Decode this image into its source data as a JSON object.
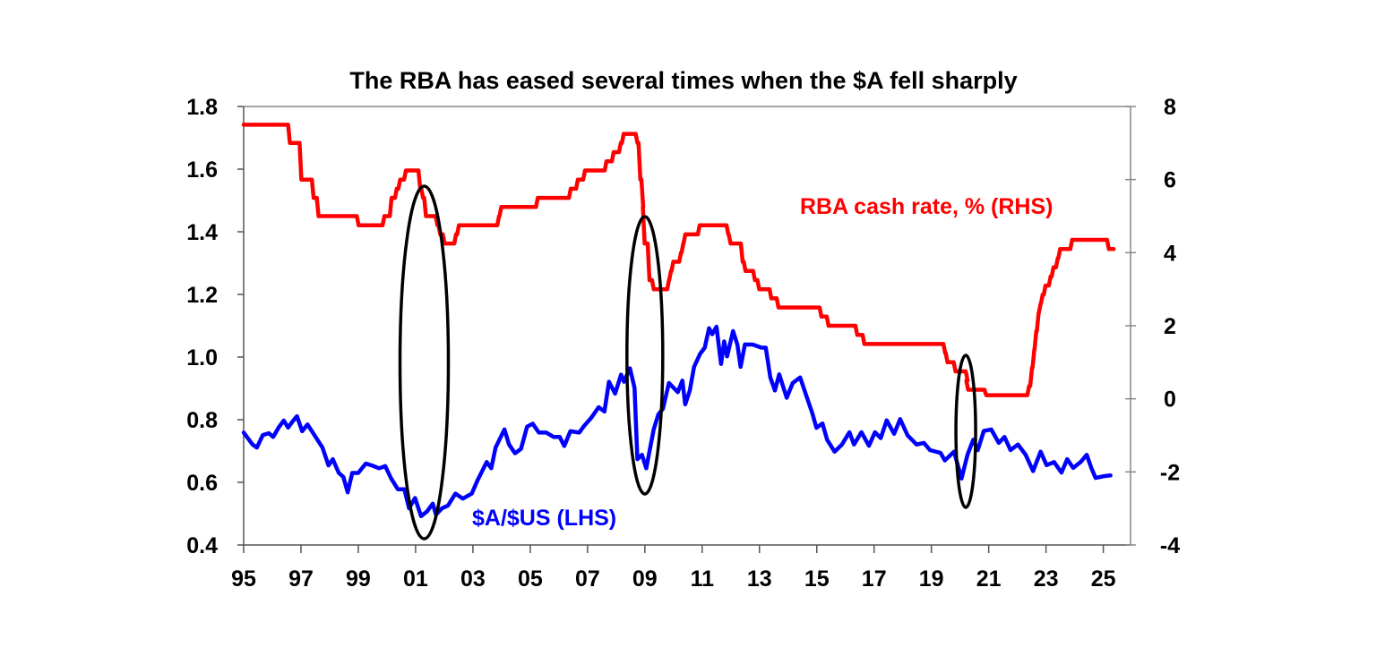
{
  "chart_data": {
    "type": "line",
    "title": "The RBA has eased several times when the $A fell sharply",
    "xlim": [
      1995,
      2025.95
    ],
    "x_ticks": [
      1995,
      1997,
      1999,
      2001,
      2003,
      2005,
      2007,
      2009,
      2011,
      2013,
      2015,
      2017,
      2019,
      2021,
      2023,
      2025
    ],
    "x_tick_labels": [
      "95",
      "97",
      "99",
      "01",
      "03",
      "05",
      "07",
      "09",
      "11",
      "13",
      "15",
      "17",
      "19",
      "21",
      "23",
      "25"
    ],
    "y_left": {
      "lim": [
        0.4,
        1.8
      ],
      "ticks": [
        0.4,
        0.6,
        0.8,
        1.0,
        1.2,
        1.4,
        1.6,
        1.8
      ],
      "tick_labels": [
        "0.4",
        "0.6",
        "0.8",
        "1.0",
        "1.2",
        "1.4",
        "1.6",
        "1.8"
      ]
    },
    "y_right": {
      "lim": [
        -4,
        8
      ],
      "ticks": [
        -4,
        -2,
        0,
        2,
        4,
        6,
        8
      ],
      "tick_labels": [
        "-4",
        "-2",
        "0",
        "2",
        "4",
        "6",
        "8"
      ]
    },
    "grid": false,
    "series": [
      {
        "name": "RBA cash rate, % (RHS)",
        "axis": "right",
        "color": "#ff0000",
        "step": true,
        "x": [
          1995.0,
          1996.55,
          1996.95,
          1997.38,
          1997.55,
          1998.95,
          1999.85,
          2000.1,
          2000.28,
          2000.4,
          2000.6,
          2001.1,
          2001.2,
          2001.3,
          2001.7,
          2001.8,
          2001.95,
          2002.35,
          2002.45,
          2003.85,
          2003.93,
          2005.2,
          2006.35,
          2006.6,
          2006.85,
          2007.6,
          2007.85,
          2008.1,
          2008.2,
          2008.68,
          2008.78,
          2008.88,
          2008.93,
          2009.1,
          2009.25,
          2009.78,
          2009.85,
          2009.93,
          2010.2,
          2010.28,
          2010.35,
          2010.85,
          2011.85,
          2011.93,
          2012.35,
          2012.45,
          2012.78,
          2012.93,
          2013.35,
          2013.6,
          2015.1,
          2015.35,
          2016.35,
          2016.6,
          2019.42,
          2019.5,
          2019.78,
          2020.2,
          2020.22,
          2020.85,
          2022.35,
          2022.45,
          2022.53,
          2022.6,
          2022.68,
          2022.75,
          2022.82,
          2022.92,
          2023.1,
          2023.2,
          2023.35,
          2023.43,
          2023.85,
          2025.13,
          2025.3
        ],
        "y": [
          7.5,
          7.0,
          6.0,
          5.5,
          5.0,
          4.75,
          5.0,
          5.5,
          5.75,
          6.0,
          6.25,
          5.75,
          5.5,
          5.0,
          4.75,
          4.5,
          4.25,
          4.5,
          4.75,
          5.0,
          5.25,
          5.5,
          5.75,
          6.0,
          6.25,
          6.5,
          6.75,
          7.0,
          7.25,
          7.0,
          6.0,
          5.25,
          4.25,
          3.25,
          3.0,
          3.25,
          3.5,
          3.75,
          4.0,
          4.25,
          4.5,
          4.75,
          4.5,
          4.25,
          3.75,
          3.5,
          3.25,
          3.0,
          2.75,
          2.5,
          2.25,
          2.0,
          1.75,
          1.5,
          1.25,
          1.0,
          0.75,
          0.5,
          0.25,
          0.1,
          0.35,
          0.85,
          1.35,
          1.85,
          2.35,
          2.6,
          2.85,
          3.1,
          3.35,
          3.6,
          3.85,
          4.1,
          4.35,
          4.1,
          4.1
        ]
      },
      {
        "name": "$A/$US (LHS)",
        "axis": "left",
        "color": "#0000ff",
        "step": false,
        "x": [
          1995.0,
          1995.31,
          1995.46,
          1995.67,
          1995.88,
          1996.03,
          1996.24,
          1996.4,
          1996.55,
          1996.71,
          1996.86,
          1997.04,
          1997.23,
          1997.49,
          1997.75,
          1997.96,
          1998.11,
          1998.32,
          1998.48,
          1998.63,
          1998.79,
          1999.0,
          1999.26,
          1999.47,
          1999.73,
          1999.94,
          2000.15,
          2000.38,
          2000.61,
          2000.77,
          2000.98,
          2001.19,
          2001.4,
          2001.6,
          2001.71,
          2001.92,
          2002.13,
          2002.39,
          2002.65,
          2002.96,
          2003.17,
          2003.48,
          2003.64,
          2003.79,
          2004.1,
          2004.26,
          2004.47,
          2004.68,
          2004.89,
          2005.09,
          2005.3,
          2005.56,
          2005.82,
          2006.03,
          2006.19,
          2006.4,
          2006.71,
          2006.86,
          2007.13,
          2007.39,
          2007.59,
          2007.75,
          2007.96,
          2008.17,
          2008.27,
          2008.48,
          2008.64,
          2008.74,
          2008.9,
          2009.05,
          2009.31,
          2009.47,
          2009.63,
          2009.84,
          2010.15,
          2010.31,
          2010.41,
          2010.57,
          2010.72,
          2010.93,
          2011.09,
          2011.24,
          2011.35,
          2011.5,
          2011.66,
          2011.77,
          2011.87,
          2012.08,
          2012.23,
          2012.34,
          2012.49,
          2012.76,
          2013.07,
          2013.22,
          2013.38,
          2013.54,
          2013.69,
          2013.95,
          2014.16,
          2014.42,
          2014.63,
          2014.84,
          2014.99,
          2015.2,
          2015.36,
          2015.62,
          2015.88,
          2016.14,
          2016.3,
          2016.56,
          2016.82,
          2017.03,
          2017.23,
          2017.44,
          2017.7,
          2017.91,
          2018.17,
          2018.48,
          2018.74,
          2018.95,
          2019.32,
          2019.47,
          2019.79,
          2020.05,
          2020.26,
          2020.46,
          2020.62,
          2020.83,
          2021.09,
          2021.35,
          2021.55,
          2021.76,
          2022.02,
          2022.29,
          2022.55,
          2022.81,
          2023.02,
          2023.28,
          2023.54,
          2023.74,
          2023.95,
          2024.21,
          2024.42,
          2024.58,
          2024.73,
          2025.04,
          2025.25
        ],
        "y": [
          0.759,
          0.721,
          0.711,
          0.751,
          0.757,
          0.745,
          0.778,
          0.797,
          0.775,
          0.795,
          0.811,
          0.763,
          0.785,
          0.748,
          0.711,
          0.654,
          0.674,
          0.63,
          0.617,
          0.568,
          0.63,
          0.63,
          0.66,
          0.654,
          0.645,
          0.652,
          0.612,
          0.578,
          0.578,
          0.517,
          0.55,
          0.492,
          0.507,
          0.532,
          0.497,
          0.517,
          0.526,
          0.564,
          0.548,
          0.564,
          0.608,
          0.665,
          0.645,
          0.711,
          0.769,
          0.721,
          0.693,
          0.707,
          0.778,
          0.787,
          0.759,
          0.759,
          0.745,
          0.745,
          0.716,
          0.763,
          0.759,
          0.778,
          0.806,
          0.84,
          0.826,
          0.921,
          0.883,
          0.944,
          0.921,
          0.964,
          0.902,
          0.674,
          0.688,
          0.645,
          0.769,
          0.817,
          0.835,
          0.917,
          0.888,
          0.925,
          0.849,
          0.893,
          0.969,
          1.011,
          1.03,
          1.092,
          1.073,
          1.097,
          0.978,
          1.05,
          1.002,
          1.083,
          1.04,
          0.969,
          1.04,
          1.04,
          1.03,
          1.03,
          0.935,
          0.893,
          0.945,
          0.87,
          0.917,
          0.935,
          0.878,
          0.822,
          0.774,
          0.788,
          0.736,
          0.698,
          0.721,
          0.76,
          0.721,
          0.76,
          0.717,
          0.76,
          0.741,
          0.798,
          0.755,
          0.802,
          0.75,
          0.721,
          0.726,
          0.703,
          0.694,
          0.67,
          0.698,
          0.612,
          0.688,
          0.736,
          0.703,
          0.764,
          0.769,
          0.726,
          0.745,
          0.703,
          0.721,
          0.688,
          0.636,
          0.698,
          0.655,
          0.665,
          0.631,
          0.674,
          0.646,
          0.665,
          0.688,
          0.646,
          0.614,
          0.62,
          0.622
        ]
      }
    ],
    "annotations": {
      "rate_label": "RBA cash rate, % (RHS)",
      "aud_label": "$A/$US (LHS)",
      "ellipses_around_years": [
        2001.3,
        2009.0,
        2020.2
      ]
    }
  }
}
